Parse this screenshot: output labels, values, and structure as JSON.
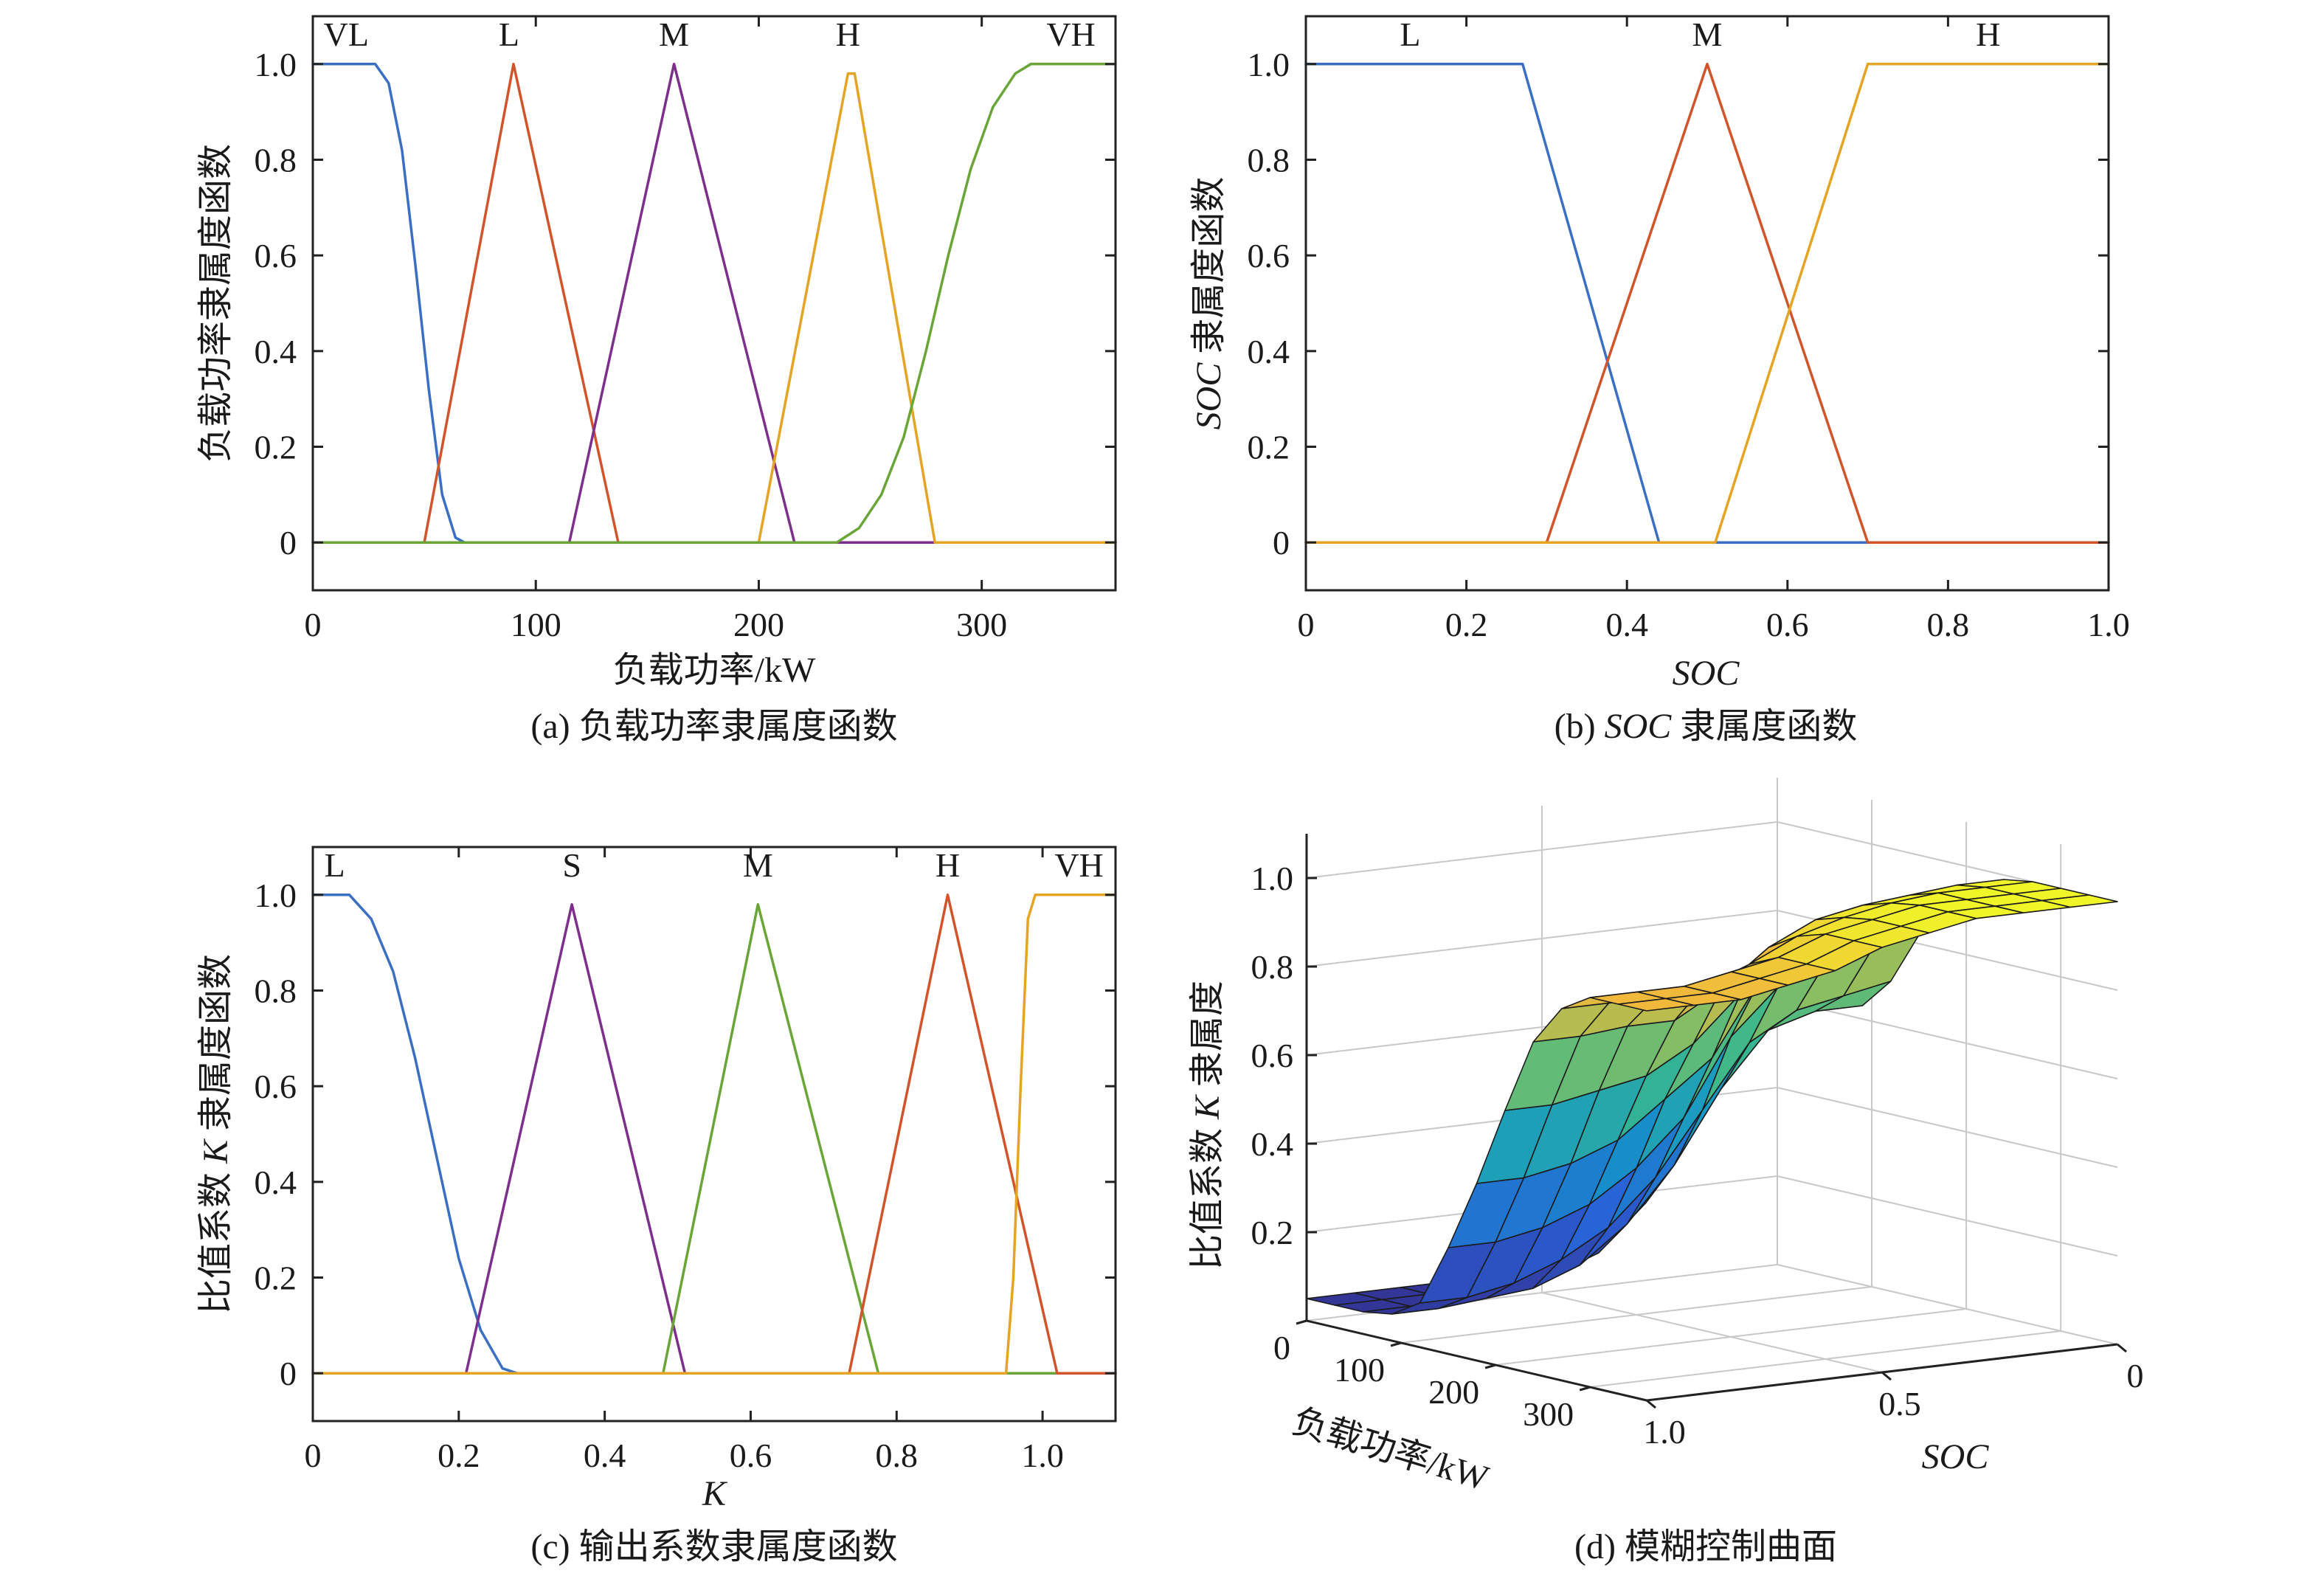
{
  "colors": {
    "blue": "#3a6fc4",
    "red": "#d2542a",
    "purple": "#7e2f8e",
    "yellow": "#e5a424",
    "green": "#6aa637"
  },
  "chart_data": [
    {
      "id": "a",
      "type": "line",
      "caption": "(a) 负载功率隶属度函数",
      "xlabel": "负载功率/kW",
      "ylabel": "负载功率隶属度函数",
      "xlim": [
        0,
        360
      ],
      "ylim": [
        -0.1,
        1.1
      ],
      "xticks": [
        0,
        100,
        200,
        300
      ],
      "xtick_labels": [
        "0",
        "100",
        "200",
        "300"
      ],
      "yticks": [
        0,
        0.2,
        0.4,
        0.6,
        0.8,
        1.0
      ],
      "ytick_labels": [
        "0",
        "0.2",
        "0.4",
        "0.6",
        "0.8",
        "1.0"
      ],
      "labels": [
        {
          "text": "VL",
          "x": 15
        },
        {
          "text": "L",
          "x": 88
        },
        {
          "text": "M",
          "x": 162
        },
        {
          "text": "H",
          "x": 240
        },
        {
          "text": "VH",
          "x": 340
        }
      ],
      "series": [
        {
          "color": "blue",
          "x": [
            0,
            28,
            34,
            40,
            46,
            52,
            58,
            64,
            68,
            360
          ],
          "y": [
            1.0,
            1.0,
            0.96,
            0.82,
            0.58,
            0.32,
            0.1,
            0.01,
            0,
            0
          ]
        },
        {
          "color": "red",
          "x": [
            0,
            50,
            90,
            137,
            360
          ],
          "y": [
            0,
            0,
            1.0,
            0,
            0
          ]
        },
        {
          "color": "purple",
          "x": [
            0,
            115,
            162,
            216,
            360
          ],
          "y": [
            0,
            0,
            1.0,
            0,
            0
          ]
        },
        {
          "color": "yellow",
          "x": [
            0,
            200,
            240,
            243,
            279,
            360
          ],
          "y": [
            0,
            0,
            0.98,
            0.98,
            0,
            0
          ]
        },
        {
          "color": "green",
          "x": [
            0,
            235,
            245,
            255,
            265,
            275,
            285,
            295,
            305,
            315,
            322,
            360
          ],
          "y": [
            0,
            0,
            0.03,
            0.1,
            0.22,
            0.4,
            0.6,
            0.78,
            0.91,
            0.98,
            1.0,
            1.0
          ]
        }
      ]
    },
    {
      "id": "b",
      "type": "line",
      "caption": "(b) SOC 隶属度函数",
      "caption_prefix": "(b) ",
      "caption_ital": "SOC",
      "caption_suffix": " 隶属度函数",
      "xlabel": "SOC",
      "ylabel_ital": "SOC",
      "ylabel_rest": " 隶属度函数",
      "xlim": [
        0,
        1.0
      ],
      "ylim": [
        -0.1,
        1.1
      ],
      "xticks": [
        0,
        0.2,
        0.4,
        0.6,
        0.8,
        1.0
      ],
      "xtick_labels": [
        "0",
        "0.2",
        "0.4",
        "0.6",
        "0.8",
        "1.0"
      ],
      "yticks": [
        0,
        0.2,
        0.4,
        0.6,
        0.8,
        1.0
      ],
      "ytick_labels": [
        "0",
        "0.2",
        "0.4",
        "0.6",
        "0.8",
        "1.0"
      ],
      "labels": [
        {
          "text": "L",
          "x": 0.13
        },
        {
          "text": "M",
          "x": 0.5
        },
        {
          "text": "H",
          "x": 0.85
        }
      ],
      "series": [
        {
          "color": "blue",
          "x": [
            0,
            0.27,
            0.44,
            1.0
          ],
          "y": [
            1.0,
            1.0,
            0,
            0
          ]
        },
        {
          "color": "red",
          "x": [
            0,
            0.3,
            0.5,
            0.7,
            1.0
          ],
          "y": [
            0,
            0,
            1.0,
            0,
            0
          ]
        },
        {
          "color": "yellow",
          "x": [
            0,
            0.51,
            0.7,
            1.0
          ],
          "y": [
            0,
            0,
            1.0,
            1.0
          ]
        }
      ]
    },
    {
      "id": "c",
      "type": "line",
      "caption": "(c) 输出系数隶属度函数",
      "xlabel": "K",
      "ylabel_pre": "比值系数 ",
      "ylabel_ital": "K",
      "ylabel_rest": " 隶属度函数",
      "xlim": [
        0,
        1.1
      ],
      "ylim": [
        -0.1,
        1.1
      ],
      "xticks": [
        0,
        0.2,
        0.4,
        0.6,
        0.8,
        1.0
      ],
      "xtick_labels": [
        "0",
        "0.2",
        "0.4",
        "0.6",
        "0.8",
        "1.0"
      ],
      "yticks": [
        0,
        0.2,
        0.4,
        0.6,
        0.8,
        1.0
      ],
      "ytick_labels": [
        "0",
        "0.2",
        "0.4",
        "0.6",
        "0.8",
        "1.0"
      ],
      "labels": [
        {
          "text": "L",
          "x": 0.03
        },
        {
          "text": "S",
          "x": 0.355
        },
        {
          "text": "M",
          "x": 0.61
        },
        {
          "text": "H",
          "x": 0.87
        },
        {
          "text": "VH",
          "x": 1.05
        }
      ],
      "series": [
        {
          "color": "blue",
          "x": [
            0,
            0.05,
            0.08,
            0.11,
            0.14,
            0.17,
            0.2,
            0.23,
            0.26,
            0.28,
            1.1
          ],
          "y": [
            1.0,
            1.0,
            0.95,
            0.84,
            0.66,
            0.45,
            0.24,
            0.09,
            0.01,
            0,
            0
          ]
        },
        {
          "color": "purple",
          "x": [
            0,
            0.21,
            0.355,
            0.51,
            1.1
          ],
          "y": [
            0,
            0,
            0.98,
            0,
            0
          ]
        },
        {
          "color": "green",
          "x": [
            0,
            0.48,
            0.61,
            0.775,
            1.1
          ],
          "y": [
            0,
            0,
            0.98,
            0,
            0
          ]
        },
        {
          "color": "red",
          "x": [
            0,
            0.735,
            0.87,
            1.02,
            1.1
          ],
          "y": [
            0,
            0,
            1.0,
            0,
            0
          ]
        },
        {
          "color": "yellow",
          "x": [
            0,
            0.95,
            0.96,
            0.97,
            0.98,
            0.99,
            1.1
          ],
          "y": [
            0,
            0,
            0.2,
            0.6,
            0.95,
            1.0,
            1.0
          ]
        }
      ]
    },
    {
      "id": "d",
      "type": "surface",
      "caption": "(d) 模糊控制曲面",
      "xlabel": "负载功率/kW",
      "ylabel": "SOC",
      "zlabel_pre": "比值系数 ",
      "zlabel_ital": "K",
      "zlabel_rest": " 隶属度",
      "x_axis": {
        "name": "load_power_kW",
        "ticks": [
          0,
          100,
          200,
          300
        ],
        "tick_labels": [
          "0",
          "100",
          "200",
          "300"
        ]
      },
      "y_axis": {
        "name": "SOC",
        "ticks": [
          0,
          0.5,
          1.0
        ],
        "tick_labels": [
          "0",
          "0.5",
          "1.0"
        ]
      },
      "z_axis": {
        "ticks": [
          0.2,
          0.4,
          0.6,
          0.8,
          1.0
        ],
        "tick_labels": [
          "0.2",
          "0.4",
          "0.6",
          "0.8",
          "1.0"
        ]
      },
      "load_values": [
        0,
        30,
        60,
        90,
        120,
        150,
        180,
        210,
        240,
        270,
        300,
        330,
        360
      ],
      "soc_values": [
        0,
        0.1,
        0.2,
        0.3,
        0.4,
        0.5,
        0.6,
        0.7,
        0.8,
        0.9,
        1.0
      ],
      "k_values": [
        [
          0.63,
          0.63,
          0.63,
          0.63,
          0.7,
          0.82,
          0.9,
          0.96,
          0.99,
          1.0,
          1.0,
          1.0,
          1.0
        ],
        [
          0.62,
          0.62,
          0.62,
          0.63,
          0.68,
          0.8,
          0.88,
          0.95,
          0.99,
          1.0,
          1.0,
          1.0,
          1.0
        ],
        [
          0.48,
          0.5,
          0.55,
          0.6,
          0.66,
          0.78,
          0.87,
          0.94,
          0.98,
          1.0,
          1.0,
          1.0,
          1.0
        ],
        [
          0.26,
          0.3,
          0.38,
          0.48,
          0.6,
          0.74,
          0.84,
          0.92,
          0.97,
          0.99,
          1.0,
          1.0,
          1.0
        ],
        [
          0.16,
          0.17,
          0.22,
          0.32,
          0.46,
          0.64,
          0.78,
          0.88,
          0.95,
          0.97,
          0.98,
          0.98,
          0.98
        ],
        [
          0.08,
          0.09,
          0.12,
          0.2,
          0.32,
          0.47,
          0.62,
          0.78,
          0.9,
          0.94,
          0.96,
          0.96,
          0.96
        ],
        [
          0.06,
          0.06,
          0.08,
          0.12,
          0.22,
          0.37,
          0.54,
          0.68,
          0.82,
          0.89,
          0.92,
          0.92,
          0.92
        ],
        [
          0.05,
          0.05,
          0.06,
          0.08,
          0.16,
          0.3,
          0.46,
          0.62,
          0.76,
          0.85,
          0.9,
          0.9,
          0.9
        ],
        [
          0.05,
          0.05,
          0.05,
          0.07,
          0.12,
          0.26,
          0.42,
          0.6,
          0.76,
          0.84,
          0.88,
          0.88,
          0.88
        ],
        [
          0.05,
          0.05,
          0.05,
          0.06,
          0.1,
          0.24,
          0.4,
          0.58,
          0.75,
          0.84,
          0.88,
          0.88,
          0.88
        ],
        [
          0.05,
          0.05,
          0.05,
          0.06,
          0.1,
          0.24,
          0.4,
          0.58,
          0.75,
          0.84,
          0.88,
          0.88,
          0.88
        ]
      ]
    }
  ]
}
